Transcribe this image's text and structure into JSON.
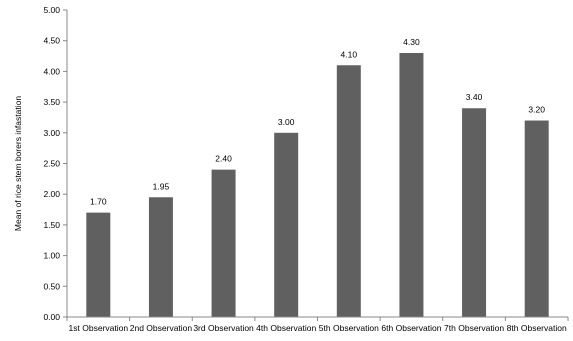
{
  "chart_data": {
    "type": "bar",
    "categories": [
      "1st Observation",
      "2nd Observation",
      "3rd Observation",
      "4th Observation",
      "5th Observation",
      "6th Observation",
      "7th Observation",
      "8th Observation"
    ],
    "values": [
      1.7,
      1.95,
      2.4,
      3.0,
      4.1,
      4.3,
      3.4,
      3.2
    ],
    "value_labels": [
      "1.70",
      "1.95",
      "2.40",
      "3.00",
      "4.10",
      "4.30",
      "3.40",
      "3.20"
    ],
    "title": "",
    "xlabel": "",
    "ylabel": "Mean of rice stem borers infastation",
    "ylim": [
      0,
      5
    ],
    "yticks": [
      "0.00",
      "0.50",
      "1.00",
      "1.50",
      "2.00",
      "2.50",
      "3.00",
      "3.50",
      "4.00",
      "4.50",
      "5.00"
    ],
    "grid": false,
    "legend": "none",
    "bar_color": "#606060",
    "axis_color": "#888888"
  }
}
